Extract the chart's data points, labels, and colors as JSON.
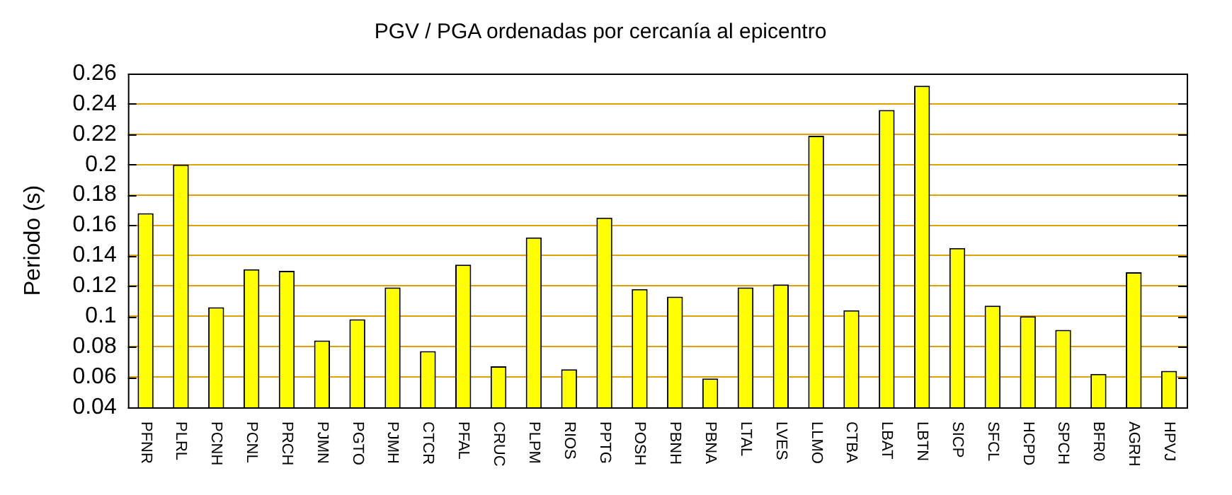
{
  "chart_data": {
    "type": "bar",
    "title": "PGV / PGA ordenadas por cercanía al epicentro",
    "ylabel": "Periodo (s)",
    "categories": [
      "PFNR",
      "PLRL",
      "PCNH",
      "PCNL",
      "PRCH",
      "PJMN",
      "PGTO",
      "PJMH",
      "CTCR",
      "PFAL",
      "CRUC",
      "PLPM",
      "RIOS",
      "PPTG",
      "POSH",
      "PBNH",
      "PBNA",
      "LTAL",
      "LVES",
      "LLMO",
      "CTBA",
      "LBAT",
      "LBTN",
      "SICP",
      "SFCL",
      "HCPD",
      "SPCH",
      "BFR0",
      "AGRH",
      "HPVJ"
    ],
    "values": [
      0.168,
      0.2,
      0.106,
      0.131,
      0.13,
      0.084,
      0.098,
      0.119,
      0.077,
      0.134,
      0.067,
      0.152,
      0.065,
      0.165,
      0.118,
      0.113,
      0.059,
      0.119,
      0.121,
      0.219,
      0.104,
      0.236,
      0.252,
      0.145,
      0.107,
      0.1,
      0.091,
      0.062,
      0.129,
      0.064
    ],
    "color": "#ffff00",
    "ylim": [
      0.04,
      0.26
    ],
    "yticks": [
      0.04,
      0.06,
      0.08,
      0.1,
      0.12,
      0.14,
      0.16,
      0.18,
      0.2,
      0.22,
      0.24,
      0.26
    ],
    "grid": true,
    "legend": false
  }
}
